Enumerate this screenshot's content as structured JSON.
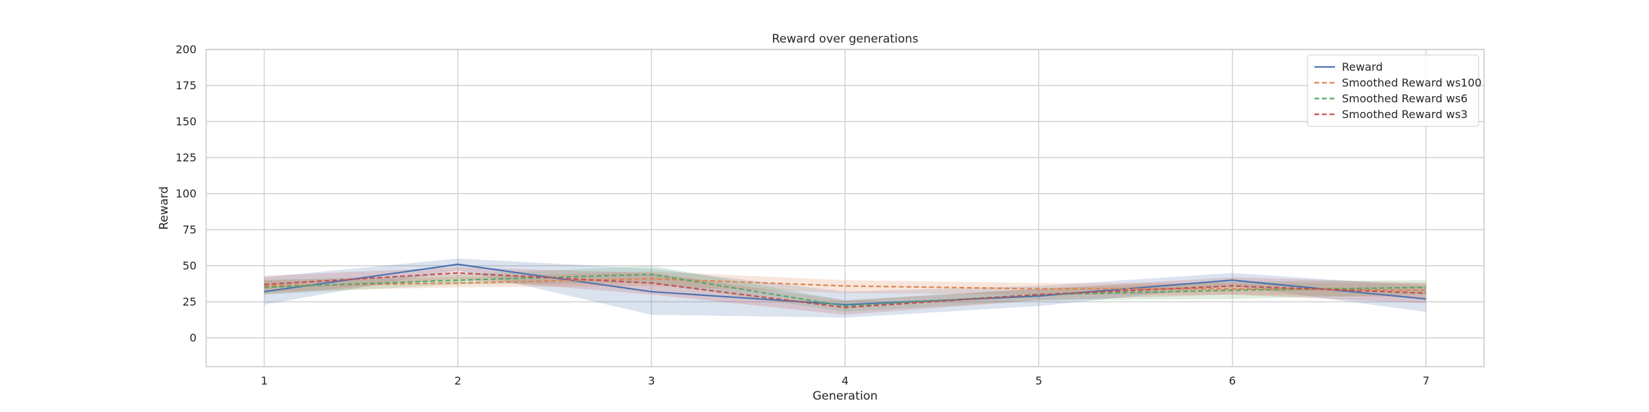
{
  "chart_data": {
    "type": "line",
    "title": "Reward over generations",
    "xlabel": "Generation",
    "ylabel": "Reward",
    "xlim": [
      0.7,
      7.3
    ],
    "ylim": [
      -20,
      200
    ],
    "x_ticks": [
      1,
      2,
      3,
      4,
      5,
      6,
      7
    ],
    "y_ticks": [
      0,
      25,
      50,
      75,
      100,
      125,
      150,
      175,
      200
    ],
    "grid": true,
    "legend_position": "top-right",
    "x": [
      1,
      2,
      3,
      4,
      5,
      6,
      7
    ],
    "series": [
      {
        "name": "Reward",
        "style": "solid",
        "color": "#4c72b0",
        "values": [
          32,
          51,
          32,
          23,
          29,
          40,
          27
        ],
        "band_lower": [
          23,
          47,
          16,
          14,
          22,
          36,
          18
        ],
        "band_upper": [
          42,
          55,
          48,
          32,
          36,
          45,
          36
        ]
      },
      {
        "name": "Smoothed Reward ws100",
        "style": "dashed",
        "color": "#dd8452",
        "values": [
          36,
          38,
          41,
          36,
          34,
          34,
          33
        ],
        "band_lower": [
          32,
          35,
          36,
          31,
          30,
          30,
          28
        ],
        "band_upper": [
          40,
          42,
          46,
          40,
          38,
          38,
          38
        ]
      },
      {
        "name": "Smoothed Reward ws6",
        "style": "dashed",
        "color": "#55a868",
        "values": [
          35,
          40,
          44,
          22,
          30,
          33,
          35
        ],
        "band_lower": [
          30,
          37,
          38,
          18,
          26,
          27,
          30
        ],
        "band_upper": [
          40,
          44,
          50,
          26,
          34,
          39,
          40
        ]
      },
      {
        "name": "Smoothed Reward ws3",
        "style": "dashed",
        "color": "#c44e52",
        "values": [
          37,
          45,
          38,
          21,
          30,
          36,
          31
        ],
        "band_lower": [
          30,
          41,
          30,
          16,
          26,
          30,
          24
        ],
        "band_upper": [
          43,
          49,
          45,
          26,
          34,
          42,
          38
        ]
      }
    ]
  }
}
